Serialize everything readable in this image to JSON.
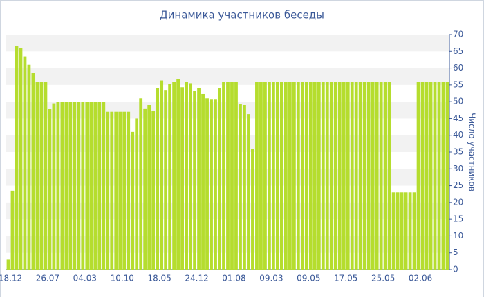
{
  "chart_data": {
    "type": "bar",
    "title": "Динамика участников беседы",
    "y_label": "Число участников",
    "categories": [
      "18.12",
      null,
      null,
      null,
      null,
      null,
      null,
      null,
      null,
      "26.07",
      null,
      null,
      null,
      null,
      null,
      null,
      null,
      null,
      "04.03",
      null,
      null,
      null,
      null,
      null,
      null,
      null,
      null,
      "10.10",
      null,
      null,
      null,
      null,
      null,
      null,
      null,
      null,
      "18.05",
      null,
      null,
      null,
      null,
      null,
      null,
      null,
      null,
      "24.12",
      null,
      null,
      null,
      null,
      null,
      null,
      null,
      null,
      "01.08",
      null,
      null,
      null,
      null,
      null,
      null,
      null,
      null,
      "09.03",
      null,
      null,
      null,
      null,
      null,
      null,
      null,
      null,
      "09.05",
      null,
      null,
      null,
      null,
      null,
      null,
      null,
      null,
      "17.05",
      null,
      null,
      null,
      null,
      null,
      null,
      null,
      null,
      "25.05",
      null,
      null,
      null,
      null,
      null,
      null,
      null,
      null,
      "02.06",
      null,
      null,
      null,
      null,
      null,
      null,
      null
    ],
    "values": [
      3,
      23.5,
      66.5,
      66,
      63.5,
      61,
      58.5,
      56,
      56,
      56,
      47.8,
      49.5,
      50,
      50,
      50,
      50,
      50,
      50,
      50,
      50,
      50,
      50,
      50,
      50,
      47,
      47,
      47,
      47,
      47,
      47,
      41,
      45,
      51,
      48,
      49,
      47.3,
      54,
      56.3,
      53.5,
      55.3,
      56,
      56.8,
      54.3,
      55.8,
      55.5,
      53.3,
      54,
      52.3,
      51,
      50.8,
      50.8,
      54,
      56,
      56,
      56,
      56,
      49.2,
      49,
      46.3,
      36,
      56,
      56,
      56,
      56,
      56,
      56,
      56,
      56,
      56,
      56,
      56,
      56,
      56,
      56,
      56,
      56,
      56,
      56,
      56,
      56,
      56,
      56,
      56,
      56,
      56,
      56,
      56,
      56,
      56,
      56,
      56,
      56,
      56,
      23,
      23,
      23,
      23,
      23,
      23,
      56,
      56,
      56,
      56,
      56,
      56,
      56,
      56
    ],
    "color": "#b5dd2e",
    "ylim": [
      0,
      70
    ],
    "yticks": [
      0,
      5,
      10,
      15,
      20,
      25,
      30,
      35,
      40,
      45,
      50,
      55,
      60,
      65,
      70
    ],
    "grid": "bands"
  }
}
